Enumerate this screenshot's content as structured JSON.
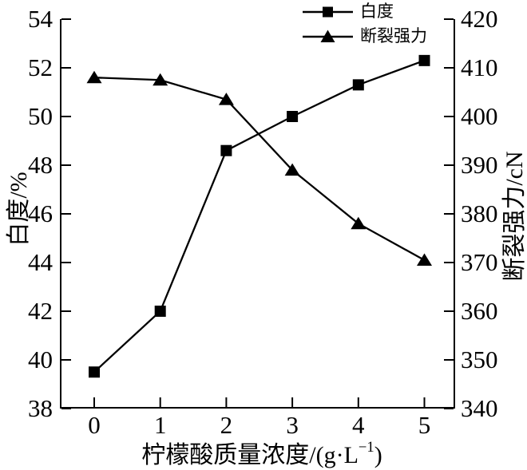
{
  "figure": {
    "background": "#ffffff",
    "ink": "#000000"
  },
  "chart_data": {
    "type": "line",
    "title": "",
    "x": [
      0,
      1,
      2,
      3,
      4,
      5
    ],
    "x_tick_labels": [
      "0",
      "1",
      "2",
      "3",
      "4",
      "5"
    ],
    "xlabel": "柠檬酸质量浓度/(g·L⁻¹)",
    "xlabel_parts": {
      "main": "柠檬酸质量浓度/(g·L",
      "sup": "−1",
      "close": ")"
    },
    "left_axis": {
      "label": "白度/%",
      "min": 38,
      "max": 54,
      "tick_step": 2,
      "ticks": [
        38,
        40,
        42,
        44,
        46,
        48,
        50,
        52,
        54
      ]
    },
    "right_axis": {
      "label": "断裂强力/cN",
      "min": 340,
      "max": 420,
      "tick_step": 10,
      "ticks": [
        340,
        350,
        360,
        370,
        380,
        390,
        400,
        410,
        420
      ]
    },
    "grid": false,
    "legend_position": "top-center",
    "series": [
      {
        "name": "白度",
        "axis": "left",
        "marker": "square",
        "color": "#000000",
        "values": [
          39.5,
          42.0,
          48.6,
          50.0,
          51.3,
          52.3
        ]
      },
      {
        "name": "断裂强力",
        "axis": "right",
        "marker": "triangle",
        "color": "#000000",
        "values": [
          408,
          407.5,
          403.5,
          389,
          378,
          370.5
        ]
      }
    ]
  },
  "legend": {
    "items": [
      {
        "label": "白度",
        "marker": "square"
      },
      {
        "label": "断裂强力",
        "marker": "triangle"
      }
    ]
  }
}
